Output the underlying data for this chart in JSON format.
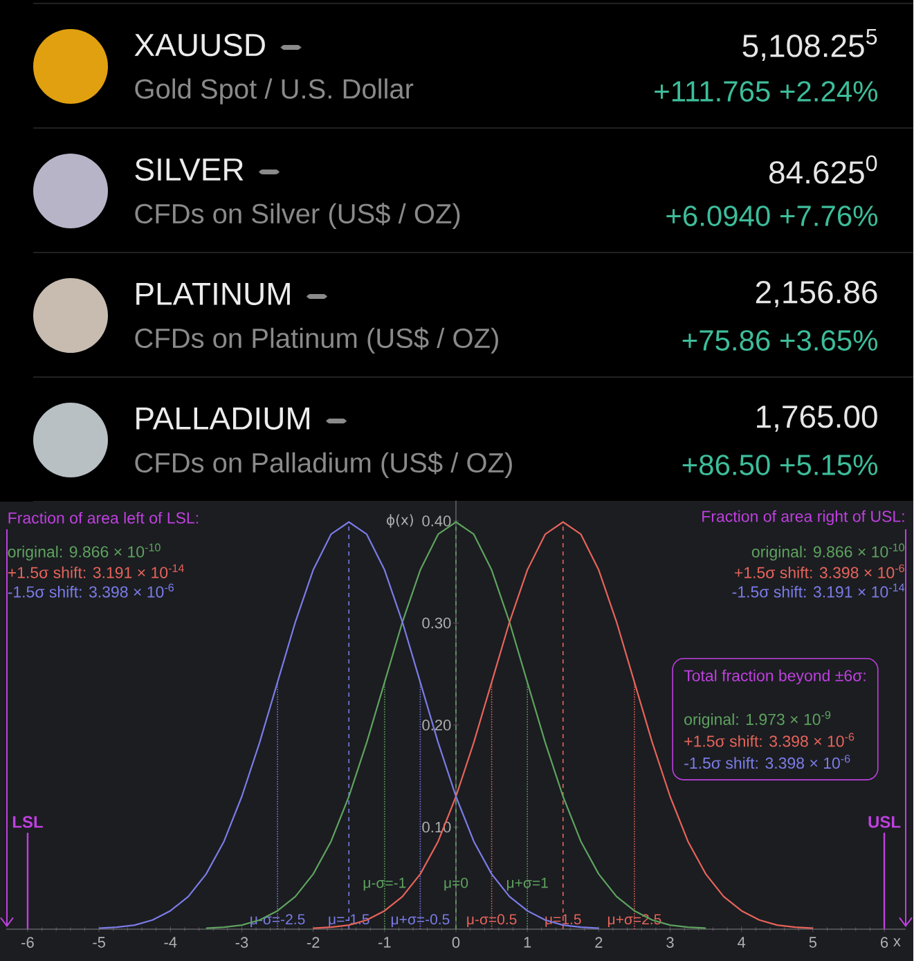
{
  "chart_data": [
    {
      "type": "other",
      "annotations": [
        "XAUUSD",
        "Gold Spot / U.S. Dollar",
        "5,108.25$^{5}$",
        "+111.765 +2.24%",
        "SILVER",
        "CFDs on Silver (US$ / OZ)",
        "84.625$^{0}$",
        "+6.0940 +7.76%",
        "PLATINUM",
        "CFDs on Platinum (US$ / OZ)",
        "2,156.86",
        "+75.86 +3.65%",
        "PALLADIUM",
        "CFDs on Palladium (US$ / OZ)",
        "1,765.00",
        "+86.50 +5.15%"
      ]
    },
    {
      "type": "line",
      "xlabel": "x",
      "ylabel": "ϕ(x)",
      "xlim": [
        -6.3,
        6.3
      ],
      "ylim": [
        0,
        0.42
      ],
      "xticks": [
        -6,
        -5,
        -4,
        -3,
        -2,
        -1,
        0,
        1,
        2,
        3,
        4,
        5,
        6
      ],
      "yticks": [
        {
          "value": 0.1,
          "label": "0.10"
        },
        {
          "value": 0.2,
          "label": "0.20"
        },
        {
          "value": 0.3,
          "label": "0.30"
        },
        {
          "value": 0.4,
          "label": "0.40"
        }
      ],
      "x": [
        -5,
        -4.75,
        -4.5,
        -4.25,
        -4,
        -3.75,
        -3.5,
        -3.25,
        -3,
        -2.75,
        -2.5,
        -2.25,
        -2,
        -1.75,
        -1.5,
        -1.25,
        -1,
        -0.75,
        -0.5,
        -0.25,
        0,
        0.25,
        0.5,
        0.75,
        1,
        1.25,
        1.5,
        1.75,
        2,
        2.25,
        2.5,
        2.75,
        3,
        3.25,
        3.5,
        3.75,
        4,
        4.25,
        4.5,
        4.75,
        5
      ],
      "series": [
        {
          "color": "#5fa35f",
          "values": [
            null,
            null,
            null,
            null,
            null,
            null,
            0.001,
            0.002,
            0.004,
            0.009,
            0.018,
            0.032,
            0.054,
            0.086,
            0.13,
            0.183,
            0.242,
            0.301,
            0.352,
            0.387,
            0.399,
            0.387,
            0.352,
            0.301,
            0.242,
            0.183,
            0.13,
            0.086,
            0.054,
            0.032,
            0.018,
            0.009,
            0.004,
            0.002,
            0.001,
            null,
            null,
            null,
            null,
            null,
            null
          ]
        },
        {
          "color": "#e8645a",
          "values": [
            null,
            null,
            null,
            null,
            null,
            null,
            null,
            null,
            null,
            null,
            null,
            null,
            0.001,
            0.002,
            0.004,
            0.009,
            0.018,
            0.032,
            0.054,
            0.086,
            0.13,
            0.183,
            0.242,
            0.301,
            0.352,
            0.387,
            0.399,
            0.387,
            0.352,
            0.301,
            0.242,
            0.183,
            0.13,
            0.086,
            0.054,
            0.032,
            0.018,
            0.009,
            0.004,
            0.002,
            0.001
          ]
        },
        {
          "color": "#7c7ce8",
          "values": [
            0.001,
            0.002,
            0.004,
            0.009,
            0.018,
            0.032,
            0.054,
            0.086,
            0.13,
            0.183,
            0.242,
            0.301,
            0.352,
            0.387,
            0.399,
            0.387,
            0.352,
            0.301,
            0.242,
            0.183,
            0.13,
            0.086,
            0.054,
            0.032,
            0.018,
            0.009,
            0.004,
            0.002,
            0.001,
            null,
            null,
            null,
            null,
            null,
            null,
            null,
            null,
            null,
            null,
            null,
            null
          ]
        }
      ],
      "ref_lines": [
        {
          "axis": "x",
          "value": -6,
          "label": "LSL",
          "color": "#c040e0",
          "line_style": "solid"
        },
        {
          "axis": "x",
          "value": 6,
          "label": "USL",
          "color": "#c040e0",
          "line_style": "solid"
        },
        {
          "axis": "x",
          "value": -2.5,
          "label": "μ-σ=-2.5",
          "color": "#7c7ce8",
          "line_style": "dotted"
        },
        {
          "axis": "x",
          "value": -1.5,
          "label": "μ=-1.5",
          "color": "#7c7ce8",
          "line_style": "dashed"
        },
        {
          "axis": "x",
          "value": -0.5,
          "label": "μ+σ=-0.5",
          "color": "#7c7ce8",
          "line_style": "dotted"
        },
        {
          "axis": "x",
          "value": -1,
          "label": "μ-σ=-1",
          "color": "#5fa35f",
          "line_style": "dotted"
        },
        {
          "axis": "x",
          "value": 0,
          "label": "μ=0",
          "color": "#5fa35f",
          "line_style": "dashed"
        },
        {
          "axis": "x",
          "value": 1,
          "label": "μ+σ=1",
          "color": "#5fa35f",
          "line_style": "dotted"
        },
        {
          "axis": "x",
          "value": 0.5,
          "label": "μ-σ=0.5",
          "color": "#e8645a",
          "line_style": "dotted"
        },
        {
          "axis": "x",
          "value": 1.5,
          "label": "μ=1.5",
          "color": "#e8645a",
          "line_style": "dashed"
        },
        {
          "axis": "x",
          "value": 2.5,
          "label": "μ+σ=2.5",
          "color": "#e8645a",
          "line_style": "dotted"
        }
      ],
      "annotations": [
        "Fraction of area left of LSL:",
        "original: 9.866 × 10$^{-10}$",
        "+1.5σ shift: 3.191 × 10$^{-14}$",
        "-1.5σ shift: 3.398 × 10$^{-6}$",
        "Fraction of area right of USL:",
        "original: 9.866 × 10$^{-10}$",
        "+1.5σ shift: 3.398 × 10$^{-6}$",
        "-1.5σ shift: 3.191 × 10$^{-14}$",
        "Total fraction beyond ±6σ:",
        "original: 1.973 × 10$^{-9}$",
        "+1.5σ shift: 3.398 × 10$^{-6}$",
        "-1.5σ shift: 3.398 × 10$^{-6}$"
      ]
    }
  ]
}
